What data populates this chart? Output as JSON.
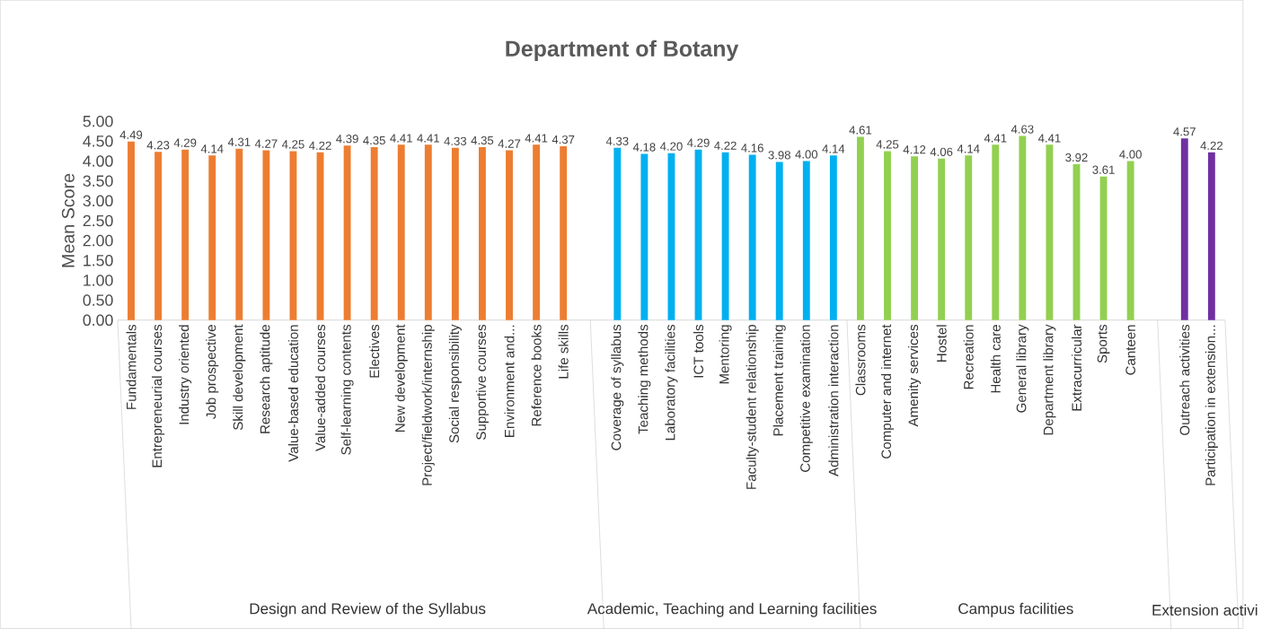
{
  "chart_data": {
    "type": "bar",
    "title": "Department of Botany",
    "ylabel": "Mean Score",
    "categories": [
      "Fundamentals",
      "Entrepreneurial courses",
      "Industry oriented",
      "Job prospective",
      "Skill development",
      "Research aptitude",
      "Value-based education",
      "Value-added courses",
      "Self-learning contents",
      "Electives",
      "New development",
      "Project/fieldwork/internship",
      "Social responsibility",
      "Supportive courses",
      "Environment and...",
      "Reference books",
      "Life skills",
      null,
      "Coverage of syllabus",
      "Teaching methods",
      "Laboratory facilities",
      "ICT tools",
      "Mentoring",
      "Faculty-student relationship",
      "Placement training",
      "Competitive examination",
      "Administration interaction",
      "Classrooms",
      "Computer and internet",
      "Amenity services",
      "Hostel",
      "Recreation",
      "Health care",
      "General library",
      "Department library",
      "Extracurricular",
      "Sports",
      "Canteen",
      null,
      "Outreach activities",
      "Participation in extension..."
    ],
    "values": [
      4.49,
      4.23,
      4.29,
      4.14,
      4.31,
      4.27,
      4.25,
      4.22,
      4.39,
      4.35,
      4.41,
      4.41,
      4.33,
      4.35,
      4.27,
      4.41,
      4.37,
      null,
      4.33,
      4.18,
      4.2,
      4.29,
      4.22,
      4.16,
      3.98,
      4.0,
      4.14,
      4.61,
      4.25,
      4.12,
      4.06,
      4.14,
      4.41,
      4.63,
      4.41,
      3.92,
      3.61,
      4.0,
      null,
      4.57,
      4.22
    ],
    "value_labels": [
      "4.49",
      "4.23",
      "4.29",
      "4.14",
      "4.31",
      "4.27",
      "4.25",
      "4.22",
      "4.39",
      "4.35",
      "4.41",
      "4.41",
      "4.33",
      "4.35",
      "4.27",
      "4.41",
      "4.37",
      null,
      "4.33",
      "4.18",
      "4.20",
      "4.29",
      "4.22",
      "4.16",
      "3.98",
      "4.00",
      "4.14",
      "4.61",
      "4.25",
      "4.12",
      "4.06",
      "4.14",
      "4.41",
      "4.63",
      "4.41",
      "3.92",
      "3.61",
      "4.00",
      null,
      "4.57",
      "4.22"
    ],
    "colors": [
      "#ed7d31",
      "#ed7d31",
      "#ed7d31",
      "#ed7d31",
      "#ed7d31",
      "#ed7d31",
      "#ed7d31",
      "#ed7d31",
      "#ed7d31",
      "#ed7d31",
      "#ed7d31",
      "#ed7d31",
      "#ed7d31",
      "#ed7d31",
      "#ed7d31",
      "#ed7d31",
      "#ed7d31",
      null,
      "#00b0f0",
      "#00b0f0",
      "#00b0f0",
      "#00b0f0",
      "#00b0f0",
      "#00b0f0",
      "#00b0f0",
      "#00b0f0",
      "#00b0f0",
      "#92d050",
      "#92d050",
      "#92d050",
      "#92d050",
      "#92d050",
      "#92d050",
      "#92d050",
      "#92d050",
      "#92d050",
      "#92d050",
      "#92d050",
      null,
      "#7030a0",
      "#7030a0"
    ],
    "ylim": [
      0,
      5
    ],
    "yticks": [
      {
        "value": 0,
        "label": "0.00"
      },
      {
        "value": 0.5,
        "label": "0.50"
      },
      {
        "value": 1,
        "label": "1.00"
      },
      {
        "value": 1.5,
        "label": "1.50"
      },
      {
        "value": 2,
        "label": "2.00"
      },
      {
        "value": 2.5,
        "label": "2.50"
      },
      {
        "value": 3,
        "label": "3.00"
      },
      {
        "value": 3.5,
        "label": "3.50"
      },
      {
        "value": 4,
        "label": "4.00"
      },
      {
        "value": 4.5,
        "label": "4.50"
      },
      {
        "value": 5,
        "label": "5.00"
      }
    ],
    "annotations": [
      "Design and Review of the Syllabus",
      "Academic, Teaching and Learning facilities",
      "Campus facilities",
      "Extension activi"
    ]
  }
}
